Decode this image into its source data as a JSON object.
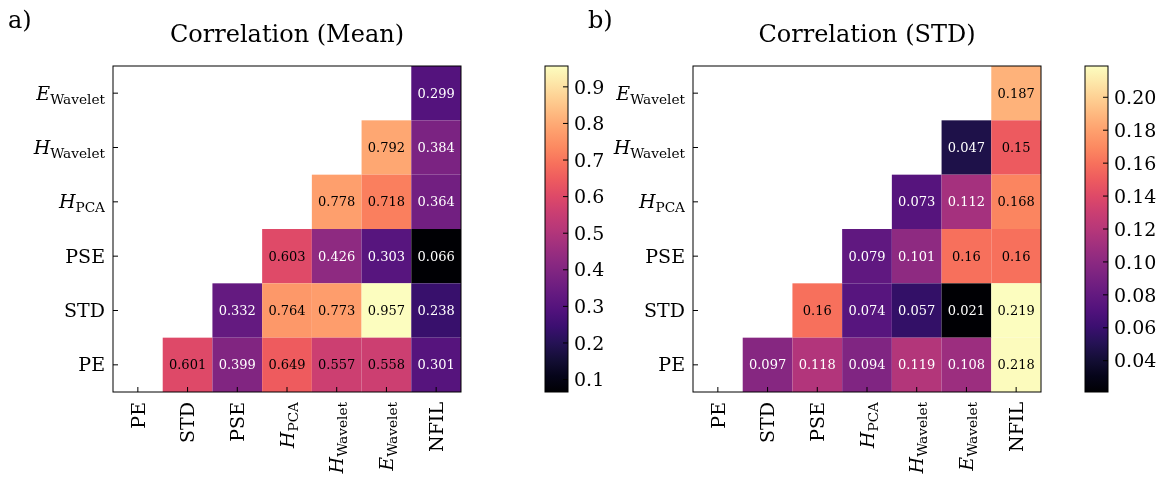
{
  "chart_data": [
    {
      "type": "heatmap",
      "title": "Correlation (Mean)",
      "annotations": [
        "a)"
      ],
      "categories": [
        "PE",
        "STD",
        "PSE",
        "H$_{PCA}$",
        "H$_{Wavelet}$",
        "E$_{Wavelet}$",
        "NFIL"
      ],
      "y_categories": [
        "E$_{Wavelet}$",
        "H$_{Wavelet}$",
        "H$_{PCA}$",
        "PSE",
        "STD",
        "PE"
      ],
      "cells": [
        [
          null,
          null,
          null,
          null,
          null,
          null,
          0.299
        ],
        [
          null,
          null,
          null,
          null,
          null,
          0.792,
          0.384
        ],
        [
          null,
          null,
          null,
          null,
          0.778,
          0.718,
          0.364
        ],
        [
          null,
          null,
          null,
          0.603,
          0.426,
          0.303,
          0.066
        ],
        [
          null,
          null,
          0.332,
          0.764,
          0.773,
          0.957,
          0.238
        ],
        [
          null,
          0.601,
          0.399,
          0.649,
          0.557,
          0.558,
          0.301
        ]
      ],
      "data_labels": true,
      "clim": [
        0.066,
        0.957
      ],
      "cticks": [
        0.1,
        0.2,
        0.3,
        0.4,
        0.5,
        0.6,
        0.7,
        0.8,
        0.9
      ]
    },
    {
      "type": "heatmap",
      "title": "Correlation (STD)",
      "annotations": [
        "b)"
      ],
      "categories": [
        "PE",
        "STD",
        "PSE",
        "H$_{PCA}$",
        "H$_{Wavelet}$",
        "E$_{Wavelet}$",
        "NFIL"
      ],
      "y_categories": [
        "E$_{Wavelet}$",
        "H$_{Wavelet}$",
        "H$_{PCA}$",
        "PSE",
        "STD",
        "PE"
      ],
      "cells": [
        [
          null,
          null,
          null,
          null,
          null,
          null,
          0.187
        ],
        [
          null,
          null,
          null,
          null,
          null,
          0.047,
          0.15
        ],
        [
          null,
          null,
          null,
          null,
          0.073,
          0.112,
          0.168
        ],
        [
          null,
          null,
          null,
          0.079,
          0.101,
          0.16,
          0.16
        ],
        [
          null,
          null,
          0.16,
          0.074,
          0.057,
          0.021,
          0.219
        ],
        [
          null,
          0.097,
          0.118,
          0.094,
          0.119,
          0.108,
          0.218
        ]
      ],
      "data_labels": true,
      "clim": [
        0.021,
        0.219
      ],
      "cticks": [
        0.04,
        0.06,
        0.08,
        {
          "value": 0.1,
          "label": "0.10"
        },
        0.12,
        0.14,
        0.16,
        0.18,
        {
          "value": 0.2,
          "label": "0.20"
        }
      ]
    }
  ]
}
